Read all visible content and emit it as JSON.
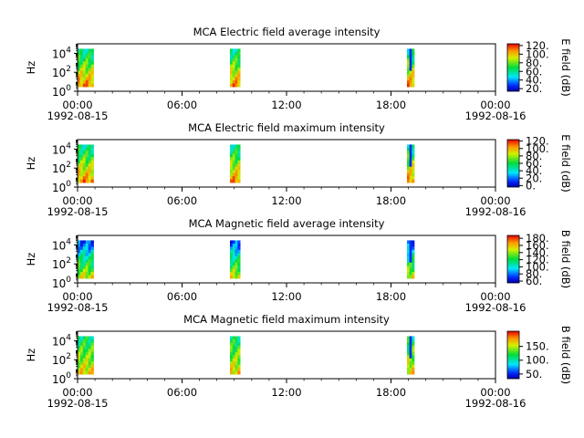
{
  "chart_data": [
    {
      "type": "heatmap",
      "title": "MCA  Electric field average intensity",
      "ylabel": "Hz",
      "y_scale": "log",
      "ylim": [
        1,
        100000
      ],
      "y_ticks": [
        {
          "base": "10",
          "exp": "0"
        },
        {
          "base": "10",
          "exp": "2"
        },
        {
          "base": "10",
          "exp": "4"
        }
      ],
      "xlim": [
        "1992-08-15 00:00",
        "1992-08-16 00:00"
      ],
      "x_tick_labels": [
        "00:00",
        "06:00",
        "12:00",
        "18:00",
        "00:00"
      ],
      "x_tick_hours": [
        0,
        6,
        12,
        18,
        24
      ],
      "date_labels": [
        "1992-08-15",
        "1992-08-16"
      ],
      "data_blocks": [
        {
          "start": "00:00",
          "end": "00:55"
        },
        {
          "start": "08:45",
          "end": "09:20"
        },
        {
          "start": "18:55",
          "end": "19:20"
        }
      ],
      "colorbar": {
        "label": "E field (dB)",
        "range": [
          14,
          124
        ],
        "tick_labels": [
          "20.",
          "40.",
          "60.",
          "80.",
          "100.",
          "120."
        ],
        "tick_values": [
          20,
          40,
          60,
          80,
          100,
          120
        ]
      }
    },
    {
      "type": "heatmap",
      "title": "MCA  Electric field maximum intensity",
      "ylabel": "Hz",
      "y_scale": "log",
      "ylim": [
        1,
        100000
      ],
      "y_ticks": [
        {
          "base": "10",
          "exp": "0"
        },
        {
          "base": "10",
          "exp": "2"
        },
        {
          "base": "10",
          "exp": "4"
        }
      ],
      "xlim": [
        "1992-08-15 00:00",
        "1992-08-16 00:00"
      ],
      "x_tick_labels": [
        "00:00",
        "06:00",
        "12:00",
        "18:00",
        "00:00"
      ],
      "x_tick_hours": [
        0,
        6,
        12,
        18,
        24
      ],
      "date_labels": [
        "1992-08-15",
        "1992-08-16"
      ],
      "data_blocks": [
        {
          "start": "00:00",
          "end": "00:55"
        },
        {
          "start": "08:45",
          "end": "09:20"
        },
        {
          "start": "18:55",
          "end": "19:20"
        }
      ],
      "colorbar": {
        "label": "E field (dB)",
        "range": [
          -4,
          124
        ],
        "tick_labels": [
          "0.",
          "20.",
          "40.",
          "60.",
          "80.",
          "100.",
          "120."
        ],
        "tick_values": [
          0,
          20,
          40,
          60,
          80,
          100,
          120
        ]
      }
    },
    {
      "type": "heatmap",
      "title": "MCA  Magnetic field average intensity",
      "ylabel": "Hz",
      "y_scale": "log",
      "ylim": [
        1,
        100000
      ],
      "y_ticks": [
        {
          "base": "10",
          "exp": "0"
        },
        {
          "base": "10",
          "exp": "2"
        },
        {
          "base": "10",
          "exp": "4"
        }
      ],
      "xlim": [
        "1992-08-15 00:00",
        "1992-08-16 00:00"
      ],
      "x_tick_labels": [
        "00:00",
        "06:00",
        "12:00",
        "18:00",
        "00:00"
      ],
      "x_tick_hours": [
        0,
        6,
        12,
        18,
        24
      ],
      "date_labels": [
        "1992-08-15",
        "1992-08-16"
      ],
      "data_blocks": [
        {
          "start": "00:00",
          "end": "00:55"
        },
        {
          "start": "08:45",
          "end": "09:20"
        },
        {
          "start": "18:55",
          "end": "19:20"
        }
      ],
      "colorbar": {
        "label": "B field (dB)",
        "range": [
          55,
          188
        ],
        "tick_labels": [
          "60.",
          "80.",
          "100.",
          "120.",
          "140.",
          "160.",
          "180."
        ],
        "tick_values": [
          60,
          80,
          100,
          120,
          140,
          160,
          180
        ]
      }
    },
    {
      "type": "heatmap",
      "title": "MCA  Magnetic field maximum intensity",
      "ylabel": "Hz",
      "y_scale": "log",
      "ylim": [
        1,
        100000
      ],
      "y_ticks": [
        {
          "base": "10",
          "exp": "0"
        },
        {
          "base": "10",
          "exp": "2"
        },
        {
          "base": "10",
          "exp": "4"
        }
      ],
      "xlim": [
        "1992-08-15 00:00",
        "1992-08-16 00:00"
      ],
      "x_tick_labels": [
        "00:00",
        "06:00",
        "12:00",
        "18:00",
        "00:00"
      ],
      "x_tick_hours": [
        0,
        6,
        12,
        18,
        24
      ],
      "date_labels": [
        "1992-08-15",
        "1992-08-16"
      ],
      "data_blocks": [
        {
          "start": "00:00",
          "end": "00:55"
        },
        {
          "start": "08:45",
          "end": "09:20"
        },
        {
          "start": "18:55",
          "end": "19:20"
        }
      ],
      "colorbar": {
        "label": "B field (dB)",
        "range": [
          33,
          205
        ],
        "tick_labels": [
          "50.",
          "100.",
          "150."
        ],
        "tick_values": [
          50,
          100,
          150
        ]
      }
    }
  ]
}
